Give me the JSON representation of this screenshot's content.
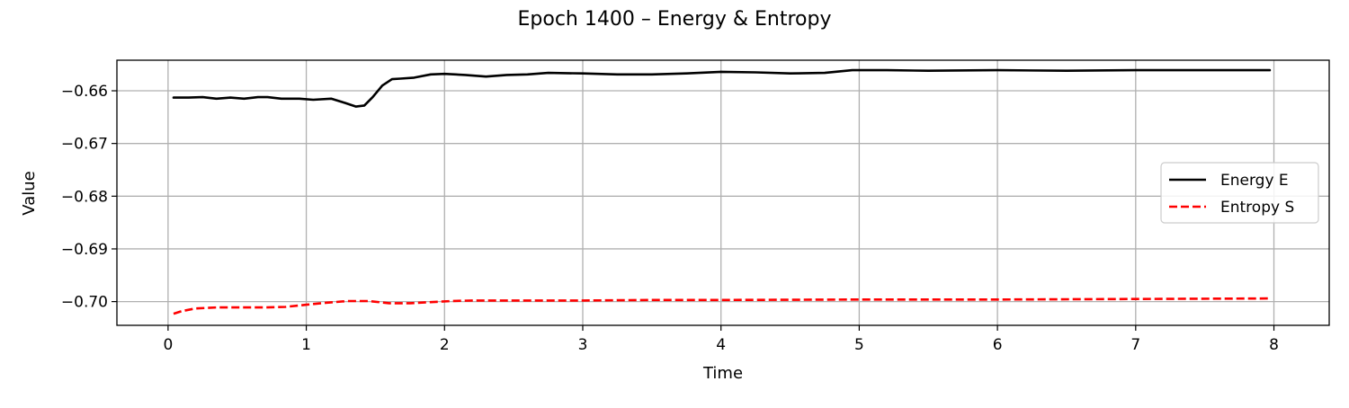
{
  "chart_data": {
    "type": "line",
    "title": "Epoch 1400 – Energy & Entropy",
    "xlabel": "Time",
    "ylabel": "Value",
    "xlim": [
      -0.37,
      8.4
    ],
    "ylim": [
      -0.7045,
      -0.6542
    ],
    "xticks": [
      0,
      1,
      2,
      3,
      4,
      5,
      6,
      7,
      8
    ],
    "xtick_labels": [
      "0",
      "1",
      "2",
      "3",
      "4",
      "5",
      "6",
      "7",
      "8"
    ],
    "yticks": [
      -0.7,
      -0.69,
      -0.68,
      -0.67,
      -0.66
    ],
    "ytick_labels": [
      "−0.70",
      "−0.69",
      "−0.68",
      "−0.67",
      "−0.66"
    ],
    "grid": true,
    "legend_position": "center-right",
    "series": [
      {
        "name": "Energy E",
        "color": "#000000",
        "style": "solid",
        "x": [
          0.04,
          0.15,
          0.25,
          0.35,
          0.45,
          0.55,
          0.65,
          0.72,
          0.82,
          0.95,
          1.05,
          1.18,
          1.28,
          1.36,
          1.42,
          1.48,
          1.55,
          1.62,
          1.68,
          1.78,
          1.9,
          2.0,
          2.15,
          2.3,
          2.45,
          2.6,
          2.75,
          3.0,
          3.25,
          3.5,
          3.75,
          4.0,
          4.25,
          4.5,
          4.75,
          4.95,
          5.2,
          5.5,
          6.0,
          6.5,
          7.0,
          7.5,
          7.97
        ],
        "y": [
          -0.6613,
          -0.6613,
          -0.6612,
          -0.6615,
          -0.6613,
          -0.6615,
          -0.6612,
          -0.6612,
          -0.6615,
          -0.6615,
          -0.6617,
          -0.6615,
          -0.6623,
          -0.663,
          -0.6628,
          -0.6612,
          -0.659,
          -0.6578,
          -0.6577,
          -0.6575,
          -0.6569,
          -0.6568,
          -0.657,
          -0.6573,
          -0.657,
          -0.6569,
          -0.6566,
          -0.6567,
          -0.6569,
          -0.6569,
          -0.6567,
          -0.6564,
          -0.6565,
          -0.6567,
          -0.6566,
          -0.6561,
          -0.6561,
          -0.6562,
          -0.6561,
          -0.6562,
          -0.6561,
          -0.6561,
          -0.6561
        ]
      },
      {
        "name": "Entropy S",
        "color": "#ff0000",
        "style": "dashed",
        "x": [
          0.04,
          0.1,
          0.2,
          0.35,
          0.5,
          0.7,
          0.85,
          1.0,
          1.15,
          1.3,
          1.45,
          1.6,
          1.75,
          1.9,
          2.05,
          2.2,
          2.5,
          3.0,
          3.5,
          4.0,
          5.0,
          6.0,
          7.0,
          7.97
        ],
        "y": [
          -0.7023,
          -0.7018,
          -0.7013,
          -0.7011,
          -0.7011,
          -0.7011,
          -0.701,
          -0.7006,
          -0.7002,
          -0.6999,
          -0.6999,
          -0.7003,
          -0.7003,
          -0.7001,
          -0.6999,
          -0.6998,
          -0.6998,
          -0.6998,
          -0.6997,
          -0.6997,
          -0.6996,
          -0.6996,
          -0.6995,
          -0.6994
        ]
      }
    ]
  }
}
